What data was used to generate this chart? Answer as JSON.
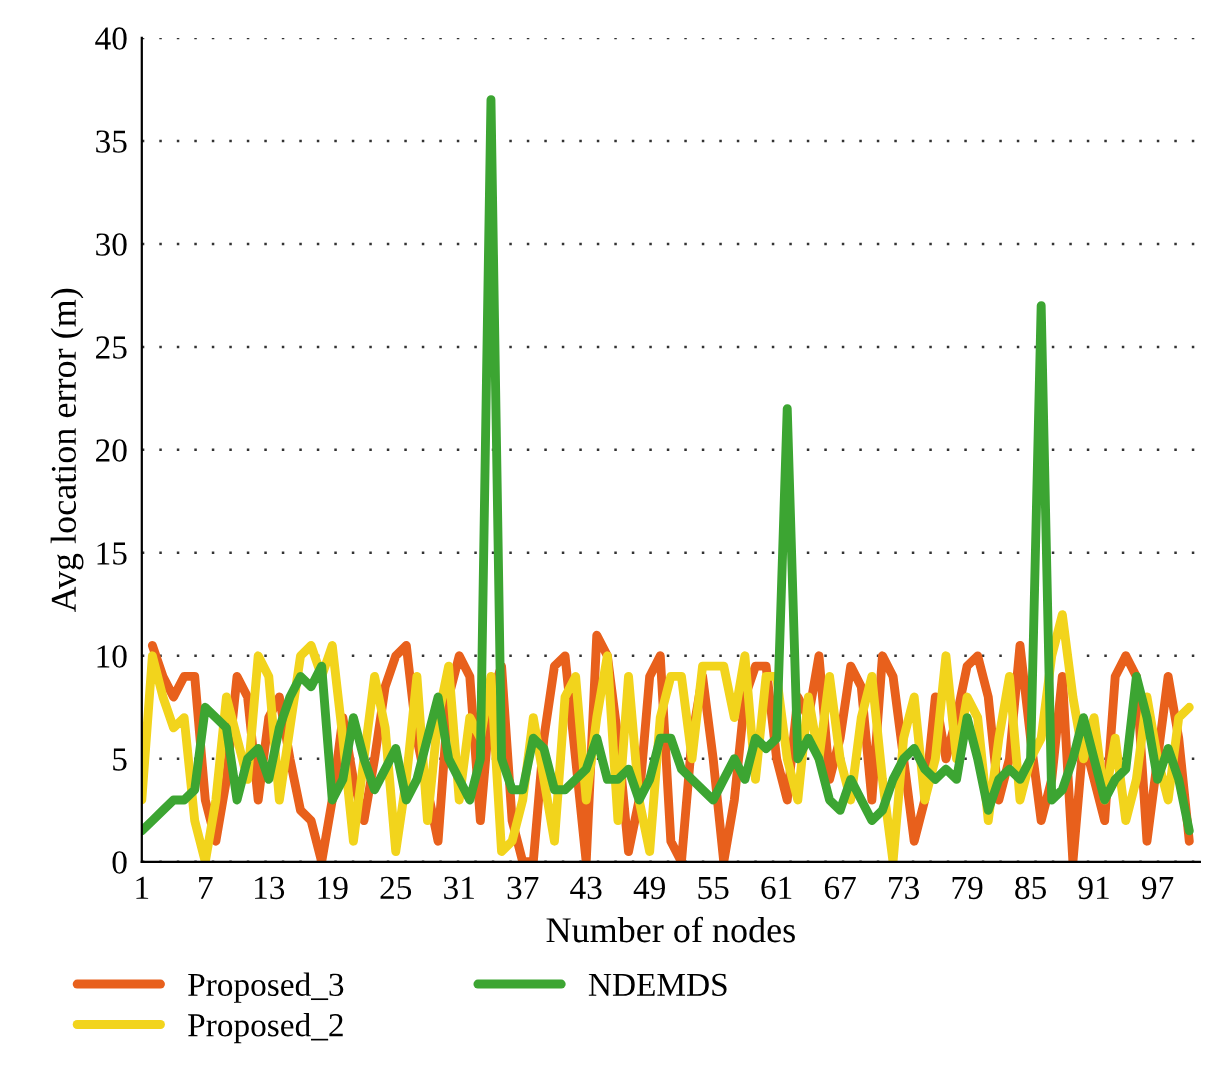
{
  "chart_data": {
    "type": "line",
    "xlabel": "Number of nodes",
    "ylabel": "Avg location error (m)",
    "x": [
      1,
      2,
      3,
      4,
      5,
      6,
      7,
      8,
      9,
      10,
      11,
      12,
      13,
      14,
      15,
      16,
      17,
      18,
      19,
      20,
      21,
      22,
      23,
      24,
      25,
      26,
      27,
      28,
      29,
      30,
      31,
      32,
      33,
      34,
      35,
      36,
      37,
      38,
      39,
      40,
      41,
      42,
      43,
      44,
      45,
      46,
      47,
      48,
      49,
      50,
      51,
      52,
      53,
      54,
      55,
      56,
      57,
      58,
      59,
      60,
      61,
      62,
      63,
      64,
      65,
      66,
      67,
      68,
      69,
      70,
      71,
      72,
      73,
      74,
      75,
      76,
      77,
      78,
      79,
      80,
      81,
      82,
      83,
      84,
      85,
      86,
      87,
      88,
      89,
      90,
      91,
      92,
      93,
      94,
      95,
      96,
      97,
      98,
      99,
      100
    ],
    "xlim": [
      1,
      101
    ],
    "xticks": [
      1,
      7,
      13,
      19,
      25,
      31,
      37,
      43,
      49,
      55,
      61,
      67,
      73,
      79,
      85,
      91,
      97
    ],
    "ylim": [
      0,
      40
    ],
    "yticks": [
      0,
      5,
      10,
      15,
      20,
      25,
      30,
      35,
      40
    ],
    "grid": "y",
    "legend": "bottom",
    "line_style": "solid",
    "series": [
      {
        "name": "Proposed_3",
        "color": "#e8601c",
        "values": [
          null,
          10.5,
          9,
          8,
          9,
          9,
          3,
          1,
          4,
          9,
          8,
          3,
          7,
          8,
          5,
          2.5,
          2,
          0,
          3,
          7,
          4,
          2,
          5,
          8.5,
          10,
          10.5,
          6,
          3.5,
          1,
          8,
          10,
          9,
          2,
          8,
          9.5,
          2,
          0,
          0,
          6,
          9.5,
          10,
          5,
          0,
          11,
          10,
          6,
          0.5,
          3,
          9,
          10,
          1,
          0,
          6,
          9,
          5,
          0,
          3,
          8,
          9.5,
          9.5,
          5,
          3,
          8,
          7,
          10,
          4,
          6,
          9.5,
          8.5,
          3,
          10,
          9,
          5,
          1,
          3,
          8,
          5,
          7,
          9.5,
          10,
          8,
          3,
          5,
          10.5,
          6,
          2,
          4,
          9,
          0,
          6,
          4,
          2,
          9,
          10,
          9,
          1,
          5,
          9,
          6,
          1
        ]
      },
      {
        "name": "Proposed_2",
        "color": "#f2d41c",
        "values": [
          3,
          10,
          8,
          6.5,
          7,
          2,
          0,
          3,
          8,
          6,
          4,
          10,
          9,
          3,
          6.5,
          10,
          10.5,
          9,
          10.5,
          6,
          1,
          5,
          9,
          6.5,
          0.5,
          4,
          9,
          2,
          7,
          9.5,
          3,
          7,
          6,
          9,
          0.5,
          1,
          3,
          7,
          4,
          1,
          8,
          9,
          3,
          7,
          10,
          2,
          9,
          3,
          0.5,
          7,
          9,
          9,
          5,
          9.5,
          9.5,
          9.5,
          7,
          10,
          4,
          9,
          9,
          5,
          3,
          8,
          5,
          9,
          5,
          3,
          7,
          9,
          4,
          0,
          6,
          8,
          3,
          5,
          10,
          5,
          8,
          7,
          2,
          6,
          9,
          3,
          5,
          6,
          10,
          12,
          8,
          5,
          7,
          3,
          6,
          2,
          4,
          8,
          5,
          3,
          7,
          7.5
        ]
      },
      {
        "name": "NDEMDS",
        "color": "#3ca532",
        "values": [
          1.5,
          2,
          2.5,
          3,
          3,
          3.5,
          7.5,
          7,
          6.5,
          3,
          5,
          5.5,
          4,
          6.5,
          8,
          9,
          8.5,
          9.5,
          3,
          4,
          7,
          5,
          3.5,
          4.5,
          5.5,
          3,
          4,
          6,
          8,
          5,
          4,
          3,
          5,
          37,
          5,
          3.5,
          3.5,
          6,
          5.5,
          3.5,
          3.5,
          4,
          4.5,
          6,
          4,
          4,
          4.5,
          3,
          4,
          6,
          6,
          4.5,
          4,
          3.5,
          3,
          4,
          5,
          4,
          6,
          5.5,
          6,
          22,
          5,
          6,
          5,
          3,
          2.5,
          4,
          3,
          2,
          2.5,
          4,
          5,
          5.5,
          4.5,
          4,
          4.5,
          4,
          7,
          5,
          2.5,
          4,
          4.5,
          4,
          5,
          27,
          3,
          3.5,
          5,
          7,
          5,
          3,
          4,
          4.5,
          9,
          7,
          4,
          5.5,
          4,
          1.5
        ]
      }
    ]
  }
}
